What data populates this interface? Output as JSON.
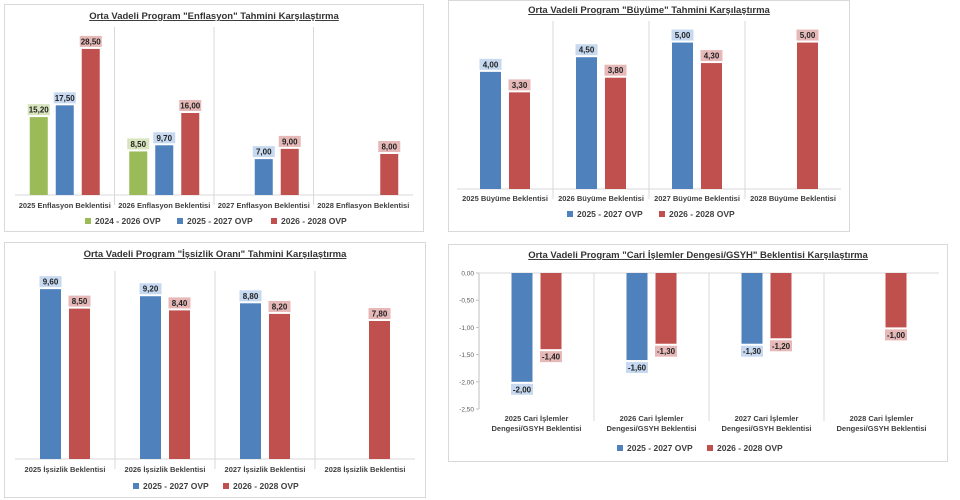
{
  "chart_data": [
    {
      "type": "bar",
      "title": "Orta Vadeli Program \"Enflasyon\" Tahmini Karşılaştırma",
      "categories": [
        "2025 Enflasyon Beklentisi",
        "2026 Enflasyon Beklentisi",
        "2027 Enflasyon Beklentisi",
        "2028 Enflasyon Beklentisi"
      ],
      "series": [
        {
          "name": "2024 - 2026 OVP",
          "values": [
            15.2,
            8.5,
            null,
            null
          ],
          "labels": [
            "15,20",
            "8,50",
            "",
            ""
          ],
          "color": "#9bbb59",
          "label_bg": "#d7e4bd"
        },
        {
          "name": "2025 - 2027 OVP",
          "values": [
            17.5,
            9.7,
            7.0,
            null
          ],
          "labels": [
            "17,50",
            "9,70",
            "7,00",
            ""
          ],
          "color": "#4f81bd",
          "label_bg": "#c6d9f1"
        },
        {
          "name": "2026 - 2028 OVP",
          "values": [
            28.5,
            16.0,
            9.0,
            8.0
          ],
          "labels": [
            "28,50",
            "16,00",
            "9,00",
            "8,00"
          ],
          "color": "#c0504d",
          "label_bg": "#e6b9b8"
        }
      ],
      "ylim": [
        0,
        32
      ],
      "grid": false,
      "legend": "bottom"
    },
    {
      "type": "bar",
      "title": "Orta Vadeli Program \"Büyüme\" Tahmini Karşılaştırma",
      "categories": [
        "2025 Büyüme Beklentisi",
        "2026 Büyüme Beklentisi",
        "2027 Büyüme Beklentisi",
        "2028 Büyüme Beklentisi"
      ],
      "series": [
        {
          "name": "2025 - 2027 OVP",
          "values": [
            4.0,
            4.5,
            5.0,
            null
          ],
          "labels": [
            "4,00",
            "4,50",
            "5,00",
            ""
          ],
          "color": "#4f81bd",
          "label_bg": "#c6d9f1"
        },
        {
          "name": "2026 - 2028 OVP",
          "values": [
            3.3,
            3.8,
            4.3,
            5.0
          ],
          "labels": [
            "3,30",
            "3,80",
            "4,30",
            "5,00"
          ],
          "color": "#c0504d",
          "label_bg": "#e6b9b8"
        }
      ],
      "ylim": [
        0,
        5.6
      ],
      "grid": false,
      "legend": "bottom"
    },
    {
      "type": "bar",
      "title": "Orta Vadeli Program \"İşsizlik Oranı\" Tahmini Karşılaştırma",
      "categories": [
        "2025 İşsizlik Beklentisi",
        "2026 İşsizlik Beklentisi",
        "2027 İşsizlik Beklentisi",
        "2028 İşsizlik Beklentisi"
      ],
      "series": [
        {
          "name": "2025 - 2027 OVP",
          "values": [
            9.6,
            9.2,
            8.8,
            null
          ],
          "labels": [
            "9,60",
            "9,20",
            "8,80",
            ""
          ],
          "color": "#4f81bd",
          "label_bg": "#c6d9f1"
        },
        {
          "name": "2026 - 2028 OVP",
          "values": [
            8.5,
            8.4,
            8.2,
            7.8
          ],
          "labels": [
            "8,50",
            "8,40",
            "8,20",
            "7,80"
          ],
          "color": "#c0504d",
          "label_bg": "#e6b9b8"
        }
      ],
      "ylim": [
        0,
        10.4
      ],
      "grid": false,
      "legend": "bottom"
    },
    {
      "type": "bar",
      "title": "Orta Vadeli Program \"Cari İşlemler Dengesi/GSYH\" Beklentisi Karşılaştırma",
      "categories": [
        [
          "2025 Cari İşlemler",
          "Dengesi/GSYH Beklentisi"
        ],
        [
          "2026 Cari İşlemler",
          "Dengesi/GSYH Beklentisi"
        ],
        [
          "2027 Cari İşlemler",
          "Dengesi/GSYH Beklentisi"
        ],
        [
          "2028 Cari İşlemler",
          "Dengesi/GSYH Beklentisi"
        ]
      ],
      "series": [
        {
          "name": "2025 - 2027 OVP",
          "values": [
            -2.0,
            -1.6,
            -1.3,
            null
          ],
          "labels": [
            "-2,00",
            "-1,60",
            "-1,30",
            ""
          ],
          "color": "#4f81bd",
          "label_bg": "#c6d9f1"
        },
        {
          "name": "2026 - 2028 OVP",
          "values": [
            -1.4,
            -1.3,
            -1.2,
            -1.0
          ],
          "labels": [
            "-1,40",
            "-1,30",
            "-1,20",
            "-1,00"
          ],
          "color": "#c0504d",
          "label_bg": "#e6b9b8"
        }
      ],
      "ylim": [
        -2.5,
        0
      ],
      "yticks": [
        0.0,
        -0.5,
        -1.0,
        -1.5,
        -2.0,
        -2.5
      ],
      "ytick_labels": [
        "0,00",
        "-0,50",
        "-1,00",
        "-1,50",
        "-2,00",
        "-2,50"
      ],
      "grid": false,
      "legend": "bottom"
    }
  ]
}
